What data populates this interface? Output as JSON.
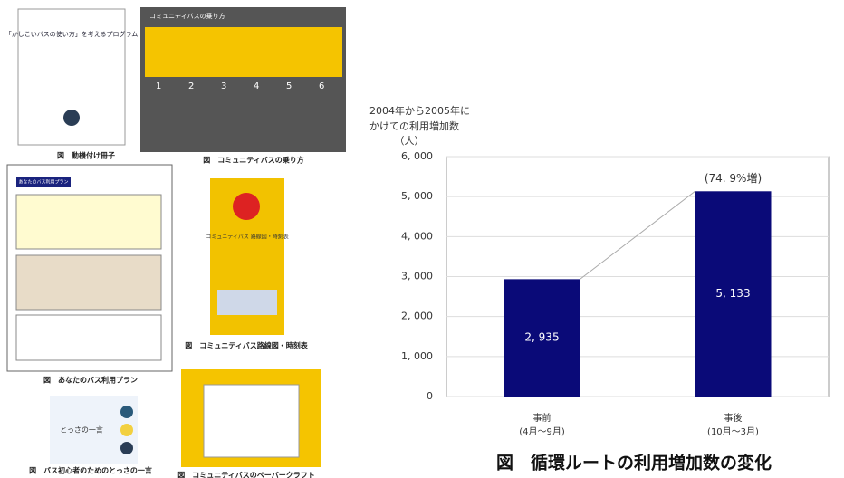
{
  "panels": [
    {
      "caption": "図　動機付け冊子",
      "inner": "「かしこいバスの使い方」を考えるプログラム"
    },
    {
      "caption": "図　コミュニティバスの乗り方",
      "inner": "コミュニティバスの乗り方",
      "steps": [
        "1",
        "2",
        "3",
        "4",
        "5",
        "6"
      ]
    },
    {
      "caption": "図　あなたのバス利用プラン",
      "inner": "あなたのバス利用プラン"
    },
    {
      "caption": "図　コミュニティバス路線図・時刻表",
      "inner": "コミュニティバス 路線図・時刻表"
    },
    {
      "caption": "図　バス初心者のためのとっさの一言",
      "inner": "とっさの一言"
    },
    {
      "caption": "図　コミュニティバスのペーパークラフト"
    }
  ],
  "chart_data": {
    "type": "bar",
    "ylabel": [
      "2004年から2005年に",
      "かけての利用増加数"
    ],
    "unit": "（人）",
    "categories": [
      "事前",
      "事後"
    ],
    "category_sublabels": [
      "(4月～9月)",
      "(10月～3月)"
    ],
    "values": [
      2935,
      5133
    ],
    "value_labels": [
      "2, 935",
      "5, 133"
    ],
    "annotation": "(74. 9%増)",
    "color": "#0a0a78",
    "ylim": [
      0,
      6000
    ],
    "yticks": [
      0,
      {
        "value": 1000,
        "label": "1, 000"
      },
      {
        "value": 2000,
        "label": "2, 000"
      },
      {
        "value": 3000,
        "label": "3, 000"
      },
      {
        "value": 4000,
        "label": "4, 000"
      },
      {
        "value": 5000,
        "label": "5, 000"
      },
      {
        "value": 6000,
        "label": "6, 000"
      }
    ],
    "grid": true,
    "caption": "図　循環ルートの利用増加数の変化"
  }
}
